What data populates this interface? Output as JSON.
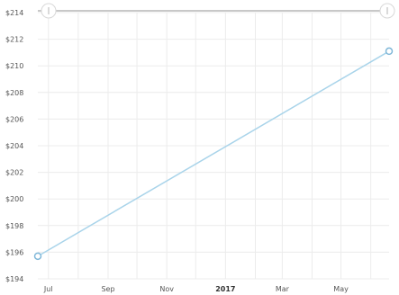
{
  "chart_data": {
    "type": "line",
    "title": "",
    "xlabel": "",
    "ylabel": "",
    "ylim": [
      194,
      214
    ],
    "y_ticks": [
      194,
      196,
      198,
      200,
      202,
      204,
      206,
      208,
      210,
      212,
      214
    ],
    "y_tick_prefix": "$",
    "x_domain": [
      "2016-06-20",
      "2017-06-20"
    ],
    "x_ticks": [
      {
        "label": "Jul",
        "date": "2016-07-01",
        "bold": false
      },
      {
        "label": "Sep",
        "date": "2016-09-01",
        "bold": false
      },
      {
        "label": "Nov",
        "date": "2016-11-01",
        "bold": false
      },
      {
        "label": "2017",
        "date": "2017-01-01",
        "bold": true
      },
      {
        "label": "Mar",
        "date": "2017-03-01",
        "bold": false
      },
      {
        "label": "May",
        "date": "2017-05-01",
        "bold": false
      }
    ],
    "series": [
      {
        "color": "#a9d4ea",
        "marker_color": "#7fb7d8",
        "points": [
          {
            "x": "2016-06-20",
            "y": 195.7
          },
          {
            "x": "2017-06-20",
            "y": 211.1
          }
        ]
      }
    ],
    "grid": true,
    "range_slider": {
      "present": true,
      "start": 0,
      "end": 1
    }
  }
}
